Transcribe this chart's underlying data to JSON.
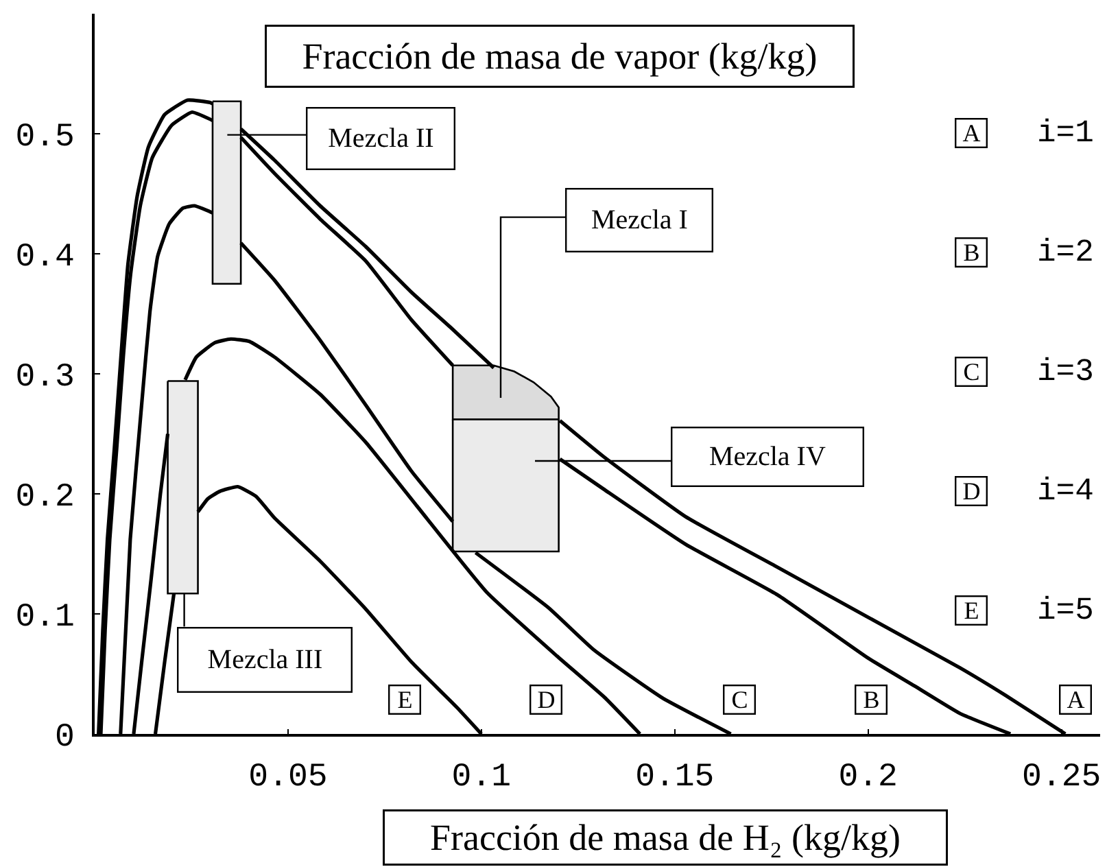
{
  "chart_data": {
    "type": "line",
    "title": "Fracción de masa de vapor (kg/kg)",
    "xlabel": "Fracción de masa de H₂ (kg/kg)",
    "xlim": [
      0,
      0.26
    ],
    "xticks": [
      0.05,
      0.1,
      0.15,
      0.2,
      0.25
    ],
    "ylim": [
      0,
      0.6
    ],
    "yticks": [
      0,
      0.1,
      0.2,
      0.3,
      0.4,
      0.5
    ],
    "series": [
      {
        "name": "A",
        "color": "#000000",
        "x": [
          0.001,
          0.0021,
          0.0033,
          0.0051,
          0.0068,
          0.0086,
          0.011,
          0.0139,
          0.0181,
          0.024,
          0.0299,
          0.0305,
          0.034,
          0.0378,
          0.0465,
          0.0583,
          0.0701,
          0.0819,
          0.0926,
          0.1032,
          0.11,
          0.1203,
          0.1316,
          0.1528,
          0.1765,
          0.2001,
          0.2238,
          0.2356,
          0.251
        ],
        "values": [
          0,
          0.086,
          0.162,
          0.238,
          0.314,
          0.391,
          0.448,
          0.489,
          0.516,
          0.528,
          0.526,
          0.525,
          null,
          0.504,
          0.478,
          0.44,
          0.406,
          0.368,
          0.337,
          0.305,
          null,
          0.261,
          0.231,
          0.181,
          0.139,
          0.097,
          0.055,
          0.032,
          0
        ]
      },
      {
        "name": "B",
        "color": "#000000",
        "x": [
          0.0016,
          0.0027,
          0.0039,
          0.0057,
          0.0074,
          0.0093,
          0.0118,
          0.0149,
          0.0199,
          0.0252,
          0.0299,
          0.0305,
          0.034,
          0.0378,
          0.0465,
          0.0583,
          0.0701,
          0.0819,
          0.0926,
          0.11,
          0.1203,
          0.1316,
          0.1528,
          0.1765,
          0.2001,
          0.212,
          0.2238,
          0.2368
        ],
        "values": [
          0,
          0.086,
          0.162,
          0.238,
          0.314,
          0.383,
          0.44,
          0.48,
          0.507,
          0.518,
          0.512,
          0.511,
          null,
          0.497,
          0.467,
          0.429,
          0.394,
          0.345,
          0.307,
          null,
          0.229,
          0.204,
          0.158,
          0.116,
          0.063,
          0.04,
          0.017,
          0
        ]
      },
      {
        "name": "C",
        "color": "#000000",
        "x": [
          0.0067,
          0.0092,
          0.0122,
          0.0143,
          0.0163,
          0.0193,
          0.0228,
          0.0258,
          0.0299,
          0.0305,
          0.034,
          0.0378,
          0.0465,
          0.0583,
          0.0701,
          0.0819,
          0.0926,
          0.095,
          0.0985,
          0.1174,
          0.1291,
          0.1468,
          0.1645
        ],
        "values": [
          0,
          0.162,
          0.276,
          0.352,
          0.398,
          0.425,
          0.438,
          0.44,
          0.435,
          0.434,
          null,
          0.409,
          0.378,
          0.328,
          0.274,
          0.219,
          0.177,
          null,
          0.151,
          0.105,
          0.07,
          0.03,
          0
        ]
      },
      {
        "name": "D",
        "color": "#000000",
        "x": [
          0.0101,
          0.0122,
          0.0146,
          0.017,
          0.0189,
          0.021,
          0.0234,
          0.0263,
          0.0311,
          0.0352,
          0.04,
          0.0465,
          0.0583,
          0.0701,
          0.0833,
          0.1014,
          0.1195,
          0.132,
          0.141
        ],
        "values": [
          0,
          0.061,
          0.129,
          0.2,
          0.25,
          null,
          0.295,
          0.314,
          0.326,
          0.329,
          0.327,
          0.314,
          0.283,
          0.243,
          0.19,
          0.118,
          0.065,
          0.03,
          0
        ]
      },
      {
        "name": "E",
        "color": "#000000",
        "x": [
          0.0157,
          0.0181,
          0.0205,
          0.023,
          0.0267,
          0.0293,
          0.0323,
          0.037,
          0.0417,
          0.0465,
          0.0583,
          0.0701,
          0.0819,
          0.0937,
          0.1
        ],
        "values": [
          0,
          0.06,
          0.117,
          null,
          0.185,
          0.196,
          0.202,
          0.206,
          0.198,
          0.18,
          0.144,
          0.104,
          0.06,
          0.022,
          0
        ]
      },
      {
        "color": "#ebebeb",
        "x": [
          0.0305,
          0.0378
        ],
        "values": [
          null,
          null
        ],
        "lower": [
          0.375,
          0.375
        ],
        "upper": [
          0.527,
          0.527
        ]
      },
      {
        "color": "#dcdcdc",
        "x": [
          0.0926,
          0.1032,
          0.1085,
          0.1135,
          0.118,
          0.12
        ],
        "values": [
          null,
          null,
          null,
          null,
          null,
          null
        ],
        "lower": [
          0.262,
          0.262,
          0.262,
          0.262,
          0.262,
          0.262
        ],
        "upper": [
          0.307,
          0.307,
          0.302,
          0.293,
          0.281,
          0.272
        ]
      },
      {
        "color": "#ebebeb",
        "x": [
          0.0926,
          0.12
        ],
        "values": [
          null,
          null
        ],
        "lower": [
          0.152,
          0.152
        ],
        "upper": [
          0.262,
          0.262
        ]
      },
      {
        "color": "#ebebeb",
        "x": [
          0.0189,
          0.0267
        ],
        "values": [
          null,
          null
        ],
        "lower": [
          0.117,
          0.117
        ],
        "upper": [
          0.294,
          0.294
        ]
      }
    ],
    "annotations": [
      "Mezcla II",
      "Mezcla I",
      "Mezcla IV",
      "Mezcla III",
      "i=1",
      "i=2",
      "i=3",
      "i=4",
      "i=5"
    ]
  }
}
